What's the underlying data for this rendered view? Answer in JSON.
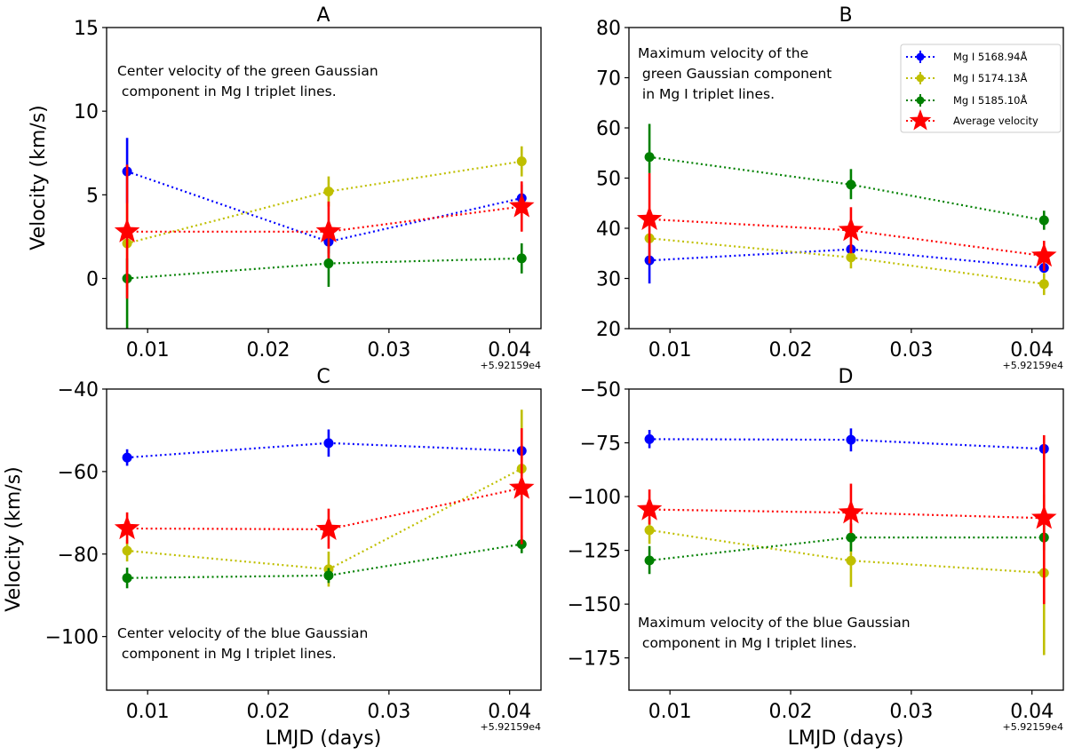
{
  "figure": {
    "x_offset_label": "+5.92159e4",
    "xlabel": "LMJD (days)",
    "ylabel": "Velocity (km/s)"
  },
  "legend": {
    "placement": "upper-right of panel B",
    "entries": [
      {
        "label": "Mg I 5168.94Å",
        "color": "#0000ff",
        "marker": "circle"
      },
      {
        "label": "Mg I 5174.13Å",
        "color": "#bfbf00",
        "marker": "circle"
      },
      {
        "label": "Mg I 5185.10Å",
        "color": "#008000",
        "marker": "circle"
      },
      {
        "label": "Average velocity",
        "color": "#ff0000",
        "marker": "star"
      }
    ]
  },
  "chart_data": [
    {
      "type": "line",
      "panel": "A",
      "title": "A",
      "annotation": [
        "Center velocity of the green Gaussian",
        " component in Mg I triplet lines."
      ],
      "xlabel": "",
      "ylabel": "Velocity (km/s)",
      "x_offset": "+5.92159e4",
      "xlim": [
        0.0066,
        0.0426
      ],
      "ylim": [
        -3,
        15
      ],
      "xticks": [
        0.01,
        0.02,
        0.03,
        0.04
      ],
      "xtick_labels": [
        "0.01",
        "0.02",
        "0.03",
        "0.04"
      ],
      "yticks": [
        0,
        5,
        10,
        15
      ],
      "ytick_labels": [
        "0",
        "5",
        "10",
        "15"
      ],
      "x": [
        0.0083,
        0.025,
        0.041
      ],
      "series": [
        {
          "name": "Mg I 5168.94Å",
          "color": "#0000ff",
          "marker": "circle",
          "values": [
            6.4,
            2.2,
            4.8
          ],
          "err_low": [
            4.5,
            1.5,
            4.0
          ],
          "err_high": [
            8.4,
            2.8,
            5.6
          ]
        },
        {
          "name": "Mg I 5174.13Å",
          "color": "#bfbf00",
          "marker": "circle",
          "values": [
            2.1,
            5.2,
            7.0
          ],
          "err_low": [
            -0.5,
            4.3,
            6.1
          ],
          "err_high": [
            4.5,
            6.1,
            7.9
          ]
        },
        {
          "name": "Mg I 5185.10Å",
          "color": "#008000",
          "marker": "circle",
          "values": [
            0.0,
            0.9,
            1.2
          ],
          "err_low": [
            -3.0,
            -0.5,
            0.3
          ],
          "err_high": [
            1.2,
            2.2,
            2.1
          ]
        },
        {
          "name": "Average velocity",
          "color": "#ff0000",
          "marker": "star",
          "values": [
            2.8,
            2.8,
            4.3
          ],
          "err_low": [
            -1.2,
            1.2,
            2.8
          ],
          "err_high": [
            6.8,
            4.6,
            5.8
          ]
        }
      ]
    },
    {
      "type": "line",
      "panel": "B",
      "title": "B",
      "annotation": [
        "Maximum velocity of the",
        " green Gaussian component",
        " in Mg I triplet lines."
      ],
      "xlabel": "",
      "ylabel": "",
      "x_offset": "+5.92159e4",
      "xlim": [
        0.0066,
        0.0426
      ],
      "ylim": [
        20,
        80
      ],
      "xticks": [
        0.01,
        0.02,
        0.03,
        0.04
      ],
      "xtick_labels": [
        "0.01",
        "0.02",
        "0.03",
        "0.04"
      ],
      "yticks": [
        20,
        30,
        40,
        50,
        60,
        70,
        80
      ],
      "ytick_labels": [
        "20",
        "30",
        "40",
        "50",
        "60",
        "70",
        "80"
      ],
      "x": [
        0.0083,
        0.025,
        0.041
      ],
      "series": [
        {
          "name": "Mg I 5168.94Å",
          "color": "#0000ff",
          "marker": "circle",
          "values": [
            33.6,
            35.8,
            32.1
          ],
          "err_low": [
            29.0,
            34.8,
            31.2
          ],
          "err_high": [
            38.0,
            36.8,
            33.0
          ]
        },
        {
          "name": "Mg I 5174.13Å",
          "color": "#bfbf00",
          "marker": "circle",
          "values": [
            38.0,
            34.2,
            28.9
          ],
          "err_low": [
            37.0,
            32.0,
            26.7
          ],
          "err_high": [
            39.0,
            36.4,
            31.1
          ]
        },
        {
          "name": "Mg I 5185.10Å",
          "color": "#008000",
          "marker": "circle",
          "values": [
            54.2,
            48.7,
            41.6
          ],
          "err_low": [
            51.0,
            45.8,
            39.7
          ],
          "err_high": [
            60.8,
            51.8,
            43.5
          ]
        },
        {
          "name": "Average velocity",
          "color": "#ff0000",
          "marker": "star",
          "values": [
            41.8,
            39.6,
            34.5
          ],
          "err_low": [
            33.0,
            35.0,
            31.5
          ],
          "err_high": [
            51.0,
            44.2,
            37.5
          ]
        }
      ]
    },
    {
      "type": "line",
      "panel": "C",
      "title": "C",
      "annotation": [
        "Center velocity of the blue Gaussian",
        " component in Mg I triplet lines."
      ],
      "xlabel": "LMJD (days)",
      "ylabel": "Velocity (km/s)",
      "x_offset": "+5.92159e4",
      "xlim": [
        0.0066,
        0.0426
      ],
      "ylim": [
        -113,
        -40
      ],
      "xticks": [
        0.01,
        0.02,
        0.03,
        0.04
      ],
      "xtick_labels": [
        "0.01",
        "0.02",
        "0.03",
        "0.04"
      ],
      "yticks": [
        -100,
        -80,
        -60,
        -40
      ],
      "ytick_labels": [
        "−100",
        "−80",
        "−60",
        "−40"
      ],
      "x": [
        0.0083,
        0.025,
        0.041
      ],
      "series": [
        {
          "name": "Mg I 5168.94Å",
          "color": "#0000ff",
          "marker": "circle",
          "values": [
            -56.6,
            -53.1,
            -55.0
          ],
          "err_low": [
            -58.6,
            -56.4,
            -56.5
          ],
          "err_high": [
            -54.6,
            -49.8,
            -53.5
          ]
        },
        {
          "name": "Mg I 5174.13Å",
          "color": "#bfbf00",
          "marker": "circle",
          "values": [
            -79.2,
            -83.7,
            -59.3
          ],
          "err_low": [
            -81.8,
            -87.9,
            -61.0
          ],
          "err_high": [
            -76.6,
            -79.4,
            -45.0
          ]
        },
        {
          "name": "Mg I 5185.10Å",
          "color": "#008000",
          "marker": "circle",
          "values": [
            -85.8,
            -85.2,
            -77.6
          ],
          "err_low": [
            -88.3,
            -87.0,
            -79.8
          ],
          "err_high": [
            -83.3,
            -83.4,
            -75.4
          ]
        },
        {
          "name": "Average velocity",
          "color": "#ff0000",
          "marker": "star",
          "values": [
            -73.8,
            -74.0,
            -64.0
          ],
          "err_low": [
            -77.5,
            -78.7,
            -77.6
          ],
          "err_high": [
            -69.9,
            -69.0,
            -49.5
          ]
        }
      ]
    },
    {
      "type": "line",
      "panel": "D",
      "title": "D",
      "annotation": [
        "Maximum velocity of the blue Gaussian",
        " component in Mg I triplet lines."
      ],
      "xlabel": "LMJD (days)",
      "ylabel": "",
      "x_offset": "+5.92159e4",
      "xlim": [
        0.0066,
        0.0426
      ],
      "ylim": [
        -190,
        -50
      ],
      "xticks": [
        0.01,
        0.02,
        0.03,
        0.04
      ],
      "xtick_labels": [
        "0.01",
        "0.02",
        "0.03",
        "0.04"
      ],
      "yticks": [
        -175,
        -150,
        -125,
        -100,
        -75,
        -50
      ],
      "ytick_labels": [
        "−175",
        "−150",
        "−125",
        "−100",
        "−75",
        "−50"
      ],
      "x": [
        0.0083,
        0.025,
        0.041
      ],
      "series": [
        {
          "name": "Mg I 5168.94Å",
          "color": "#0000ff",
          "marker": "circle",
          "values": [
            -73.3,
            -73.6,
            -77.8
          ],
          "err_low": [
            -77.5,
            -79.0,
            -79.0
          ],
          "err_high": [
            -69.0,
            -68.3,
            -76.6
          ]
        },
        {
          "name": "Mg I 5174.13Å",
          "color": "#bfbf00",
          "marker": "circle",
          "values": [
            -115.6,
            -129.8,
            -135.5
          ],
          "err_low": [
            -122.0,
            -142.0,
            -173.7
          ],
          "err_high": [
            -110.0,
            -118.0,
            -99.0
          ]
        },
        {
          "name": "Mg I 5185.10Å",
          "color": "#008000",
          "marker": "circle",
          "values": [
            -129.7,
            -119.0,
            -119.0
          ],
          "err_low": [
            -136.0,
            -125.5,
            -125.0
          ],
          "err_high": [
            -123.0,
            -112.5,
            -113.0
          ]
        },
        {
          "name": "Average velocity",
          "color": "#ff0000",
          "marker": "star",
          "values": [
            -106.0,
            -107.5,
            -110.0
          ],
          "err_low": [
            -113.0,
            -117.0,
            -150.0
          ],
          "err_high": [
            -96.7,
            -94.0,
            -71.5
          ]
        }
      ]
    }
  ]
}
